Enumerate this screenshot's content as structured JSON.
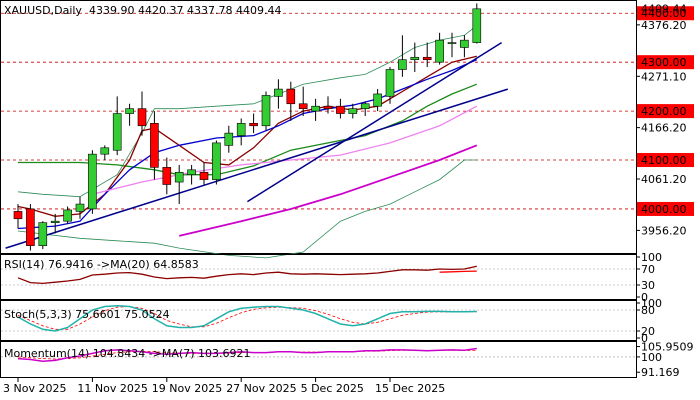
{
  "chart_data": {
    "type": "candlestick",
    "main": {
      "title": "XAUUSD,Daily",
      "ohlc_text": "4339.90 4420.37 4337.78 4409.44",
      "ylim": [
        3910,
        4425
      ],
      "last_price": 4409.44,
      "price_label_text": "4409.44",
      "ticks": [
        {
          "v": 4376.2,
          "label": "4376.20"
        },
        {
          "v": 4271.1,
          "label": "4271.10"
        },
        {
          "v": 4166.2,
          "label": "4166.20"
        },
        {
          "v": 4061.2,
          "label": "4061.20"
        },
        {
          "v": 3956.2,
          "label": "3956.20"
        }
      ],
      "levels": [
        {
          "v": 4400,
          "label": "4400.00"
        },
        {
          "v": 4300,
          "label": "4300.00"
        },
        {
          "v": 4200,
          "label": "4200.00"
        },
        {
          "v": 4100,
          "label": "4100.00"
        },
        {
          "v": 4000,
          "label": "4000.00"
        }
      ],
      "candles": [
        {
          "o": 3995,
          "h": 4010,
          "l": 3960,
          "c": 3980
        },
        {
          "o": 4000,
          "h": 4010,
          "l": 3915,
          "c": 3925
        },
        {
          "o": 3925,
          "h": 3975,
          "l": 3918,
          "c": 3972
        },
        {
          "o": 3972,
          "h": 3990,
          "l": 3950,
          "c": 3975
        },
        {
          "o": 3975,
          "h": 4005,
          "l": 3970,
          "c": 3998
        },
        {
          "o": 3995,
          "h": 4025,
          "l": 3980,
          "c": 4010
        },
        {
          "o": 4000,
          "h": 4120,
          "l": 3990,
          "c": 4112
        },
        {
          "o": 4112,
          "h": 4130,
          "l": 4100,
          "c": 4125
        },
        {
          "o": 4120,
          "h": 4230,
          "l": 4110,
          "c": 4195
        },
        {
          "o": 4195,
          "h": 4215,
          "l": 4170,
          "c": 4205
        },
        {
          "o": 4205,
          "h": 4240,
          "l": 4150,
          "c": 4170
        },
        {
          "o": 4175,
          "h": 4200,
          "l": 4060,
          "c": 4085
        },
        {
          "o": 4085,
          "h": 4105,
          "l": 4030,
          "c": 4050
        },
        {
          "o": 4055,
          "h": 4090,
          "l": 4010,
          "c": 4075
        },
        {
          "o": 4070,
          "h": 4090,
          "l": 4050,
          "c": 4080
        },
        {
          "o": 4075,
          "h": 4095,
          "l": 4050,
          "c": 4060
        },
        {
          "o": 4060,
          "h": 4140,
          "l": 4050,
          "c": 4135
        },
        {
          "o": 4130,
          "h": 4170,
          "l": 4115,
          "c": 4155
        },
        {
          "o": 4150,
          "h": 4185,
          "l": 4130,
          "c": 4175
        },
        {
          "o": 4175,
          "h": 4195,
          "l": 4155,
          "c": 4170
        },
        {
          "o": 4170,
          "h": 4240,
          "l": 4160,
          "c": 4232
        },
        {
          "o": 4230,
          "h": 4265,
          "l": 4205,
          "c": 4245
        },
        {
          "o": 4245,
          "h": 4260,
          "l": 4180,
          "c": 4215
        },
        {
          "o": 4215,
          "h": 4250,
          "l": 4190,
          "c": 4205
        },
        {
          "o": 4200,
          "h": 4225,
          "l": 4180,
          "c": 4210
        },
        {
          "o": 4210,
          "h": 4230,
          "l": 4195,
          "c": 4205
        },
        {
          "o": 4210,
          "h": 4225,
          "l": 4185,
          "c": 4195
        },
        {
          "o": 4195,
          "h": 4215,
          "l": 4185,
          "c": 4205
        },
        {
          "o": 4205,
          "h": 4220,
          "l": 4190,
          "c": 4215
        },
        {
          "o": 4210,
          "h": 4245,
          "l": 4200,
          "c": 4235
        },
        {
          "o": 4230,
          "h": 4290,
          "l": 4215,
          "c": 4285
        },
        {
          "o": 4285,
          "h": 4355,
          "l": 4270,
          "c": 4305
        },
        {
          "o": 4305,
          "h": 4340,
          "l": 4280,
          "c": 4310
        },
        {
          "o": 4310,
          "h": 4340,
          "l": 4290,
          "c": 4305
        },
        {
          "o": 4300,
          "h": 4360,
          "l": 4295,
          "c": 4345
        },
        {
          "o": 4340,
          "h": 4360,
          "l": 4310,
          "c": 4340
        },
        {
          "o": 4330,
          "h": 4355,
          "l": 4310,
          "c": 4345
        },
        {
          "o": 4340,
          "h": 4420,
          "l": 4338,
          "c": 4409
        }
      ],
      "lines": [
        {
          "name": "upper-band",
          "color": "#2e8b57",
          "w": 0.8,
          "pts": [
            [
              0,
              4035
            ],
            [
              2,
              4030
            ],
            [
              5,
              4025
            ],
            [
              8,
              4070
            ],
            [
              10,
              4155
            ],
            [
              11,
              4205
            ],
            [
              13,
              4205
            ],
            [
              16,
              4210
            ],
            [
              19,
              4215
            ],
            [
              23,
              4255
            ],
            [
              26,
              4268
            ],
            [
              28,
              4275
            ],
            [
              30,
              4300
            ],
            [
              32,
              4330
            ],
            [
              34,
              4345
            ],
            [
              36,
              4355
            ],
            [
              37,
              4375
            ]
          ]
        },
        {
          "name": "lower-band",
          "color": "#2e8b57",
          "w": 0.8,
          "pts": [
            [
              0,
              3955
            ],
            [
              5,
              3940
            ],
            [
              8,
              3935
            ],
            [
              11,
              3930
            ],
            [
              13,
              3920
            ],
            [
              17,
              3905
            ],
            [
              20,
              3900
            ],
            [
              23,
              3912
            ],
            [
              26,
              3975
            ],
            [
              28,
              3995
            ],
            [
              30,
              4010
            ],
            [
              32,
              4035
            ],
            [
              34,
              4060
            ],
            [
              36,
              4100
            ],
            [
              37,
              4100
            ]
          ]
        },
        {
          "name": "middle-band",
          "color": "#1a8a1a",
          "w": 1.3,
          "pts": [
            [
              0,
              4095
            ],
            [
              5,
              4095
            ],
            [
              8,
              4090
            ],
            [
              11,
              4080
            ],
            [
              13,
              4070
            ],
            [
              16,
              4070
            ],
            [
              19,
              4088
            ],
            [
              22,
              4120
            ],
            [
              25,
              4135
            ],
            [
              28,
              4150
            ],
            [
              31,
              4180
            ],
            [
              33,
              4210
            ],
            [
              35,
              4235
            ],
            [
              37,
              4255
            ]
          ]
        },
        {
          "name": "fast-ma",
          "color": "#8b0000",
          "w": 1.3,
          "pts": [
            [
              0,
              4005
            ],
            [
              1,
              4000
            ],
            [
              3,
              3985
            ],
            [
              5,
              3990
            ],
            [
              7,
              4030
            ],
            [
              9,
              4100
            ],
            [
              10,
              4160
            ],
            [
              11,
              4165
            ],
            [
              13,
              4130
            ],
            [
              15,
              4095
            ],
            [
              17,
              4090
            ],
            [
              19,
              4125
            ],
            [
              21,
              4175
            ],
            [
              23,
              4200
            ],
            [
              25,
              4210
            ],
            [
              27,
              4202
            ],
            [
              29,
              4210
            ],
            [
              31,
              4240
            ],
            [
              33,
              4270
            ],
            [
              35,
              4300
            ],
            [
              37,
              4312
            ]
          ]
        },
        {
          "name": "medium-ma",
          "color": "#0000cd",
          "w": 1.3,
          "pts": [
            [
              0,
              3960
            ],
            [
              3,
              3965
            ],
            [
              5,
              3975
            ],
            [
              7,
              4030
            ],
            [
              9,
              4080
            ],
            [
              11,
              4115
            ],
            [
              13,
              4130
            ],
            [
              16,
              4145
            ],
            [
              19,
              4150
            ],
            [
              21,
              4170
            ],
            [
              23,
              4195
            ],
            [
              25,
              4205
            ],
            [
              27,
              4212
            ],
            [
              29,
              4225
            ],
            [
              31,
              4245
            ],
            [
              33,
              4265
            ],
            [
              35,
              4283
            ],
            [
              37,
              4305
            ]
          ]
        },
        {
          "name": "slow-ma",
          "color": "#ee82ee",
          "w": 1.3,
          "pts": [
            [
              6,
              4030
            ],
            [
              10,
              4055
            ],
            [
              14,
              4075
            ],
            [
              18,
              4090
            ],
            [
              22,
              4100
            ],
            [
              26,
              4110
            ],
            [
              30,
              4135
            ],
            [
              34,
              4170
            ],
            [
              37,
              4210
            ]
          ]
        },
        {
          "name": "long-ma",
          "color": "#cc00cc",
          "w": 1.8,
          "pts": [
            [
              13,
              3945
            ],
            [
              18,
              3975
            ],
            [
              22,
              4000
            ],
            [
              26,
              4030
            ],
            [
              30,
              4065
            ],
            [
              34,
              4100
            ],
            [
              37,
              4130
            ]
          ]
        },
        {
          "name": "trendline-lower",
          "color": "#00008b",
          "w": 1.5,
          "pts": [
            [
              -1,
              3920
            ],
            [
              39.5,
              4245
            ]
          ]
        },
        {
          "name": "trendline-upper",
          "color": "#00008b",
          "w": 1.5,
          "pts": [
            [
              18.5,
              4015
            ],
            [
              39,
              4340
            ]
          ]
        }
      ]
    },
    "rsi": {
      "title": "RSI(14) 76.9416  ->MA(20) 64.8583",
      "ylim": [
        0,
        100
      ],
      "levels": [
        70,
        30
      ],
      "ticks": [
        {
          "v": 100,
          "label": "100"
        },
        {
          "v": 70,
          "label": "70"
        },
        {
          "v": 30,
          "label": "30"
        },
        {
          "v": 0,
          "label": "0"
        }
      ],
      "line": [
        48,
        36,
        34,
        37,
        40,
        44,
        55,
        57,
        60,
        61,
        57,
        50,
        46,
        48,
        49,
        47,
        52,
        56,
        58,
        56,
        60,
        62,
        58,
        57,
        58,
        57,
        56,
        57,
        58,
        60,
        64,
        68,
        68,
        67,
        70,
        69,
        70,
        77
      ],
      "ma": [
        null,
        null,
        null,
        null,
        null,
        null,
        null,
        null,
        null,
        null,
        null,
        null,
        null,
        null,
        null,
        null,
        null,
        null,
        null,
        null,
        null,
        null,
        null,
        null,
        null,
        null,
        null,
        null,
        null,
        null,
        null,
        null,
        null,
        null,
        62,
        63,
        64,
        64.86
      ]
    },
    "stoch": {
      "title": "Stoch(5,3,3) 75.6601 75.0524",
      "ylim": [
        0,
        100
      ],
      "levels": [
        80,
        20
      ],
      "ticks": [
        {
          "v": 100,
          "label": "100"
        },
        {
          "v": 80,
          "label": "80"
        },
        {
          "v": 20,
          "label": "20"
        },
        {
          "v": 0,
          "label": "0"
        }
      ],
      "k": [
        60,
        40,
        25,
        20,
        30,
        55,
        80,
        90,
        92,
        90,
        80,
        55,
        35,
        30,
        30,
        35,
        55,
        75,
        85,
        88,
        90,
        90,
        85,
        80,
        70,
        55,
        40,
        35,
        40,
        55,
        70,
        75,
        75,
        76,
        76,
        75,
        75,
        75.66
      ],
      "d": [
        65,
        50,
        35,
        25,
        25,
        40,
        60,
        78,
        88,
        90,
        85,
        70,
        50,
        40,
        32,
        32,
        42,
        58,
        72,
        82,
        86,
        88,
        87,
        85,
        78,
        68,
        55,
        45,
        40,
        45,
        55,
        65,
        70,
        74,
        75,
        75,
        75,
        75.05
      ]
    },
    "momentum": {
      "title": "Momentum(14) 104.8434  ->MA(7) 103.6921",
      "ylim": [
        89,
        108
      ],
      "ticks": [
        {
          "v": 105.9509,
          "label": "105.9509"
        },
        {
          "v": 100,
          "label": "100"
        },
        {
          "v": 91.169,
          "label": "91.169"
        }
      ],
      "line": [
        99,
        98.5,
        97.5,
        98,
        99.5,
        100.5,
        102,
        103.5,
        104,
        103.5,
        103,
        102,
        101.5,
        102,
        102.5,
        102,
        102,
        102.5,
        103,
        102.5,
        102.5,
        103,
        103,
        102.5,
        102.5,
        103,
        103,
        103,
        103.5,
        103.5,
        104,
        104,
        103.8,
        103.5,
        103.8,
        104,
        103.8,
        104.84
      ],
      "ma": [
        100,
        99.5,
        99,
        98.8,
        99,
        99.5,
        100.5,
        101.5,
        102.5,
        103,
        103.2,
        103,
        102.5,
        102.2,
        102,
        102,
        102,
        102.2,
        102.5,
        102.6,
        102.6,
        102.8,
        102.8,
        102.8,
        102.8,
        102.9,
        103,
        103,
        103.2,
        103.3,
        103.6,
        103.8,
        103.8,
        103.7,
        103.7,
        103.8,
        103.7,
        103.69
      ]
    },
    "x_labels": [
      {
        "i": 0,
        "label": "3 Nov 2025"
      },
      {
        "i": 6,
        "label": "11 Nov 2025"
      },
      {
        "i": 12,
        "label": "19 Nov 2025"
      },
      {
        "i": 18,
        "label": "27 Nov 2025"
      },
      {
        "i": 24,
        "label": "5 Dec 2025"
      },
      {
        "i": 30,
        "label": "15 Dec 2025"
      }
    ]
  }
}
